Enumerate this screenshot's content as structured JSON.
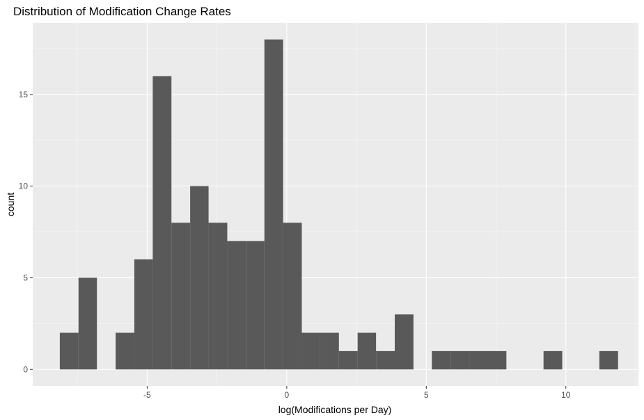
{
  "chart_data": {
    "type": "bar",
    "title": "Distribution of Modification Change Rates",
    "xlabel": "log(Modifications per Day)",
    "ylabel": "count",
    "xlim": [
      -9.1,
      12.6
    ],
    "ylim": [
      -0.9,
      18.9
    ],
    "x_ticks": [
      -5,
      0,
      5,
      10
    ],
    "x_tick_labels": [
      "-5",
      "0",
      "5",
      "10"
    ],
    "y_ticks": [
      0,
      5,
      10,
      15
    ],
    "y_tick_labels": [
      "0",
      "5",
      "10",
      "15"
    ],
    "grid": true,
    "bin_width": 0.667,
    "bins": [
      {
        "x0": -8.13,
        "x1": -7.46,
        "count": 2
      },
      {
        "x0": -7.46,
        "x1": -6.8,
        "count": 5
      },
      {
        "x0": -6.8,
        "x1": -6.13,
        "count": 0
      },
      {
        "x0": -6.13,
        "x1": -5.46,
        "count": 2
      },
      {
        "x0": -5.46,
        "x1": -4.8,
        "count": 6
      },
      {
        "x0": -4.8,
        "x1": -4.13,
        "count": 16
      },
      {
        "x0": -4.13,
        "x1": -3.46,
        "count": 8
      },
      {
        "x0": -3.46,
        "x1": -2.8,
        "count": 10
      },
      {
        "x0": -2.8,
        "x1": -2.13,
        "count": 8
      },
      {
        "x0": -2.13,
        "x1": -1.46,
        "count": 7
      },
      {
        "x0": -1.46,
        "x1": -0.8,
        "count": 7
      },
      {
        "x0": -0.8,
        "x1": -0.13,
        "count": 18
      },
      {
        "x0": -0.13,
        "x1": 0.54,
        "count": 8
      },
      {
        "x0": 0.54,
        "x1": 1.2,
        "count": 2
      },
      {
        "x0": 1.2,
        "x1": 1.87,
        "count": 2
      },
      {
        "x0": 1.87,
        "x1": 2.54,
        "count": 1
      },
      {
        "x0": 2.54,
        "x1": 3.2,
        "count": 2
      },
      {
        "x0": 3.2,
        "x1": 3.87,
        "count": 1
      },
      {
        "x0": 3.87,
        "x1": 4.54,
        "count": 3
      },
      {
        "x0": 4.54,
        "x1": 5.2,
        "count": 0
      },
      {
        "x0": 5.2,
        "x1": 5.87,
        "count": 1
      },
      {
        "x0": 5.87,
        "x1": 6.54,
        "count": 1
      },
      {
        "x0": 6.54,
        "x1": 7.2,
        "count": 1
      },
      {
        "x0": 7.2,
        "x1": 7.87,
        "count": 1
      },
      {
        "x0": 7.87,
        "x1": 8.54,
        "count": 0
      },
      {
        "x0": 8.54,
        "x1": 9.2,
        "count": 0
      },
      {
        "x0": 9.2,
        "x1": 9.87,
        "count": 1
      },
      {
        "x0": 9.87,
        "x1": 10.54,
        "count": 0
      },
      {
        "x0": 10.54,
        "x1": 11.2,
        "count": 0
      },
      {
        "x0": 11.2,
        "x1": 11.87,
        "count": 1
      }
    ],
    "colors": {
      "bar": "#595959",
      "panel": "#ebebeb",
      "grid_major": "#ffffff",
      "tick_text": "#4d4d4d"
    }
  }
}
